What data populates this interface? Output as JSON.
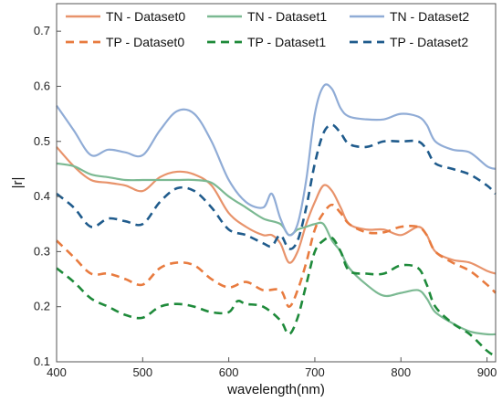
{
  "chart_data": {
    "type": "line",
    "title": "",
    "xlabel": "wavelength(nm)",
    "ylabel": "|r|",
    "xlim": [
      400,
      910
    ],
    "ylim": [
      0.1,
      0.75
    ],
    "xticks": [
      400,
      500,
      600,
      700,
      800,
      900
    ],
    "yticks": [
      0.1,
      0.2,
      0.3,
      0.4,
      0.5,
      0.6,
      0.7
    ],
    "grid": false,
    "legend_position": "top",
    "legend_columns": 3,
    "series": [
      {
        "name": "TN - Dataset0",
        "color": "#e8936b",
        "dash": "solid",
        "points": [
          [
            400,
            0.49
          ],
          [
            420,
            0.455
          ],
          [
            440,
            0.43
          ],
          [
            460,
            0.425
          ],
          [
            480,
            0.42
          ],
          [
            500,
            0.41
          ],
          [
            520,
            0.435
          ],
          [
            540,
            0.445
          ],
          [
            560,
            0.44
          ],
          [
            580,
            0.42
          ],
          [
            600,
            0.37
          ],
          [
            620,
            0.345
          ],
          [
            640,
            0.33
          ],
          [
            650,
            0.33
          ],
          [
            660,
            0.315
          ],
          [
            670,
            0.28
          ],
          [
            680,
            0.3
          ],
          [
            690,
            0.35
          ],
          [
            700,
            0.39
          ],
          [
            710,
            0.42
          ],
          [
            720,
            0.41
          ],
          [
            730,
            0.38
          ],
          [
            740,
            0.35
          ],
          [
            760,
            0.34
          ],
          [
            780,
            0.34
          ],
          [
            800,
            0.33
          ],
          [
            820,
            0.345
          ],
          [
            830,
            0.33
          ],
          [
            840,
            0.3
          ],
          [
            860,
            0.285
          ],
          [
            880,
            0.28
          ],
          [
            900,
            0.265
          ],
          [
            910,
            0.26
          ]
        ]
      },
      {
        "name": "TN - Dataset1",
        "color": "#7bb992",
        "dash": "solid",
        "points": [
          [
            400,
            0.46
          ],
          [
            420,
            0.455
          ],
          [
            440,
            0.44
          ],
          [
            460,
            0.435
          ],
          [
            480,
            0.43
          ],
          [
            500,
            0.43
          ],
          [
            520,
            0.43
          ],
          [
            540,
            0.43
          ],
          [
            560,
            0.43
          ],
          [
            580,
            0.425
          ],
          [
            600,
            0.4
          ],
          [
            620,
            0.38
          ],
          [
            640,
            0.36
          ],
          [
            660,
            0.35
          ],
          [
            670,
            0.33
          ],
          [
            680,
            0.34
          ],
          [
            690,
            0.345
          ],
          [
            700,
            0.35
          ],
          [
            710,
            0.35
          ],
          [
            720,
            0.32
          ],
          [
            730,
            0.3
          ],
          [
            740,
            0.27
          ],
          [
            760,
            0.24
          ],
          [
            780,
            0.22
          ],
          [
            800,
            0.225
          ],
          [
            820,
            0.23
          ],
          [
            830,
            0.215
          ],
          [
            840,
            0.19
          ],
          [
            860,
            0.17
          ],
          [
            880,
            0.155
          ],
          [
            900,
            0.15
          ],
          [
            910,
            0.15
          ]
        ]
      },
      {
        "name": "TN - Dataset2",
        "color": "#90acd6",
        "dash": "solid",
        "points": [
          [
            400,
            0.565
          ],
          [
            420,
            0.52
          ],
          [
            440,
            0.475
          ],
          [
            460,
            0.485
          ],
          [
            480,
            0.48
          ],
          [
            500,
            0.475
          ],
          [
            520,
            0.52
          ],
          [
            540,
            0.555
          ],
          [
            560,
            0.55
          ],
          [
            580,
            0.5
          ],
          [
            600,
            0.43
          ],
          [
            620,
            0.39
          ],
          [
            640,
            0.38
          ],
          [
            650,
            0.405
          ],
          [
            660,
            0.36
          ],
          [
            670,
            0.33
          ],
          [
            680,
            0.35
          ],
          [
            690,
            0.43
          ],
          [
            700,
            0.55
          ],
          [
            710,
            0.6
          ],
          [
            720,
            0.595
          ],
          [
            730,
            0.56
          ],
          [
            740,
            0.545
          ],
          [
            760,
            0.54
          ],
          [
            780,
            0.54
          ],
          [
            800,
            0.55
          ],
          [
            820,
            0.545
          ],
          [
            830,
            0.53
          ],
          [
            840,
            0.5
          ],
          [
            860,
            0.485
          ],
          [
            880,
            0.48
          ],
          [
            900,
            0.455
          ],
          [
            910,
            0.45
          ]
        ]
      },
      {
        "name": "TP - Dataset0",
        "color": "#e87b3f",
        "dash": "dashed",
        "points": [
          [
            400,
            0.32
          ],
          [
            420,
            0.29
          ],
          [
            440,
            0.26
          ],
          [
            460,
            0.26
          ],
          [
            480,
            0.25
          ],
          [
            500,
            0.24
          ],
          [
            520,
            0.27
          ],
          [
            540,
            0.28
          ],
          [
            560,
            0.275
          ],
          [
            580,
            0.25
          ],
          [
            600,
            0.235
          ],
          [
            620,
            0.245
          ],
          [
            640,
            0.23
          ],
          [
            660,
            0.23
          ],
          [
            670,
            0.2
          ],
          [
            680,
            0.23
          ],
          [
            690,
            0.28
          ],
          [
            700,
            0.34
          ],
          [
            710,
            0.37
          ],
          [
            720,
            0.385
          ],
          [
            730,
            0.37
          ],
          [
            740,
            0.35
          ],
          [
            760,
            0.335
          ],
          [
            780,
            0.335
          ],
          [
            800,
            0.345
          ],
          [
            820,
            0.345
          ],
          [
            830,
            0.33
          ],
          [
            840,
            0.3
          ],
          [
            860,
            0.28
          ],
          [
            880,
            0.265
          ],
          [
            900,
            0.24
          ],
          [
            910,
            0.225
          ]
        ]
      },
      {
        "name": "TP - Dataset1",
        "color": "#1e8a3a",
        "dash": "dashed",
        "points": [
          [
            400,
            0.27
          ],
          [
            420,
            0.245
          ],
          [
            440,
            0.215
          ],
          [
            460,
            0.2
          ],
          [
            480,
            0.185
          ],
          [
            500,
            0.18
          ],
          [
            520,
            0.2
          ],
          [
            540,
            0.205
          ],
          [
            560,
            0.2
          ],
          [
            580,
            0.19
          ],
          [
            600,
            0.19
          ],
          [
            610,
            0.21
          ],
          [
            620,
            0.205
          ],
          [
            640,
            0.2
          ],
          [
            660,
            0.175
          ],
          [
            670,
            0.15
          ],
          [
            680,
            0.18
          ],
          [
            690,
            0.24
          ],
          [
            700,
            0.3
          ],
          [
            710,
            0.32
          ],
          [
            720,
            0.325
          ],
          [
            730,
            0.3
          ],
          [
            740,
            0.265
          ],
          [
            760,
            0.26
          ],
          [
            780,
            0.26
          ],
          [
            800,
            0.275
          ],
          [
            820,
            0.27
          ],
          [
            830,
            0.24
          ],
          [
            840,
            0.2
          ],
          [
            860,
            0.17
          ],
          [
            880,
            0.15
          ],
          [
            900,
            0.12
          ],
          [
            910,
            0.11
          ]
        ]
      },
      {
        "name": "TP - Dataset2",
        "color": "#1f5b8c",
        "dash": "dashed",
        "points": [
          [
            400,
            0.405
          ],
          [
            420,
            0.38
          ],
          [
            440,
            0.345
          ],
          [
            460,
            0.36
          ],
          [
            480,
            0.355
          ],
          [
            500,
            0.35
          ],
          [
            520,
            0.39
          ],
          [
            540,
            0.415
          ],
          [
            560,
            0.41
          ],
          [
            580,
            0.38
          ],
          [
            600,
            0.34
          ],
          [
            620,
            0.33
          ],
          [
            640,
            0.315
          ],
          [
            650,
            0.31
          ],
          [
            660,
            0.33
          ],
          [
            670,
            0.305
          ],
          [
            680,
            0.32
          ],
          [
            690,
            0.38
          ],
          [
            700,
            0.46
          ],
          [
            710,
            0.515
          ],
          [
            720,
            0.53
          ],
          [
            730,
            0.515
          ],
          [
            740,
            0.495
          ],
          [
            760,
            0.49
          ],
          [
            780,
            0.5
          ],
          [
            800,
            0.5
          ],
          [
            820,
            0.5
          ],
          [
            830,
            0.485
          ],
          [
            840,
            0.46
          ],
          [
            860,
            0.45
          ],
          [
            880,
            0.44
          ],
          [
            900,
            0.42
          ],
          [
            910,
            0.405
          ]
        ]
      }
    ]
  }
}
